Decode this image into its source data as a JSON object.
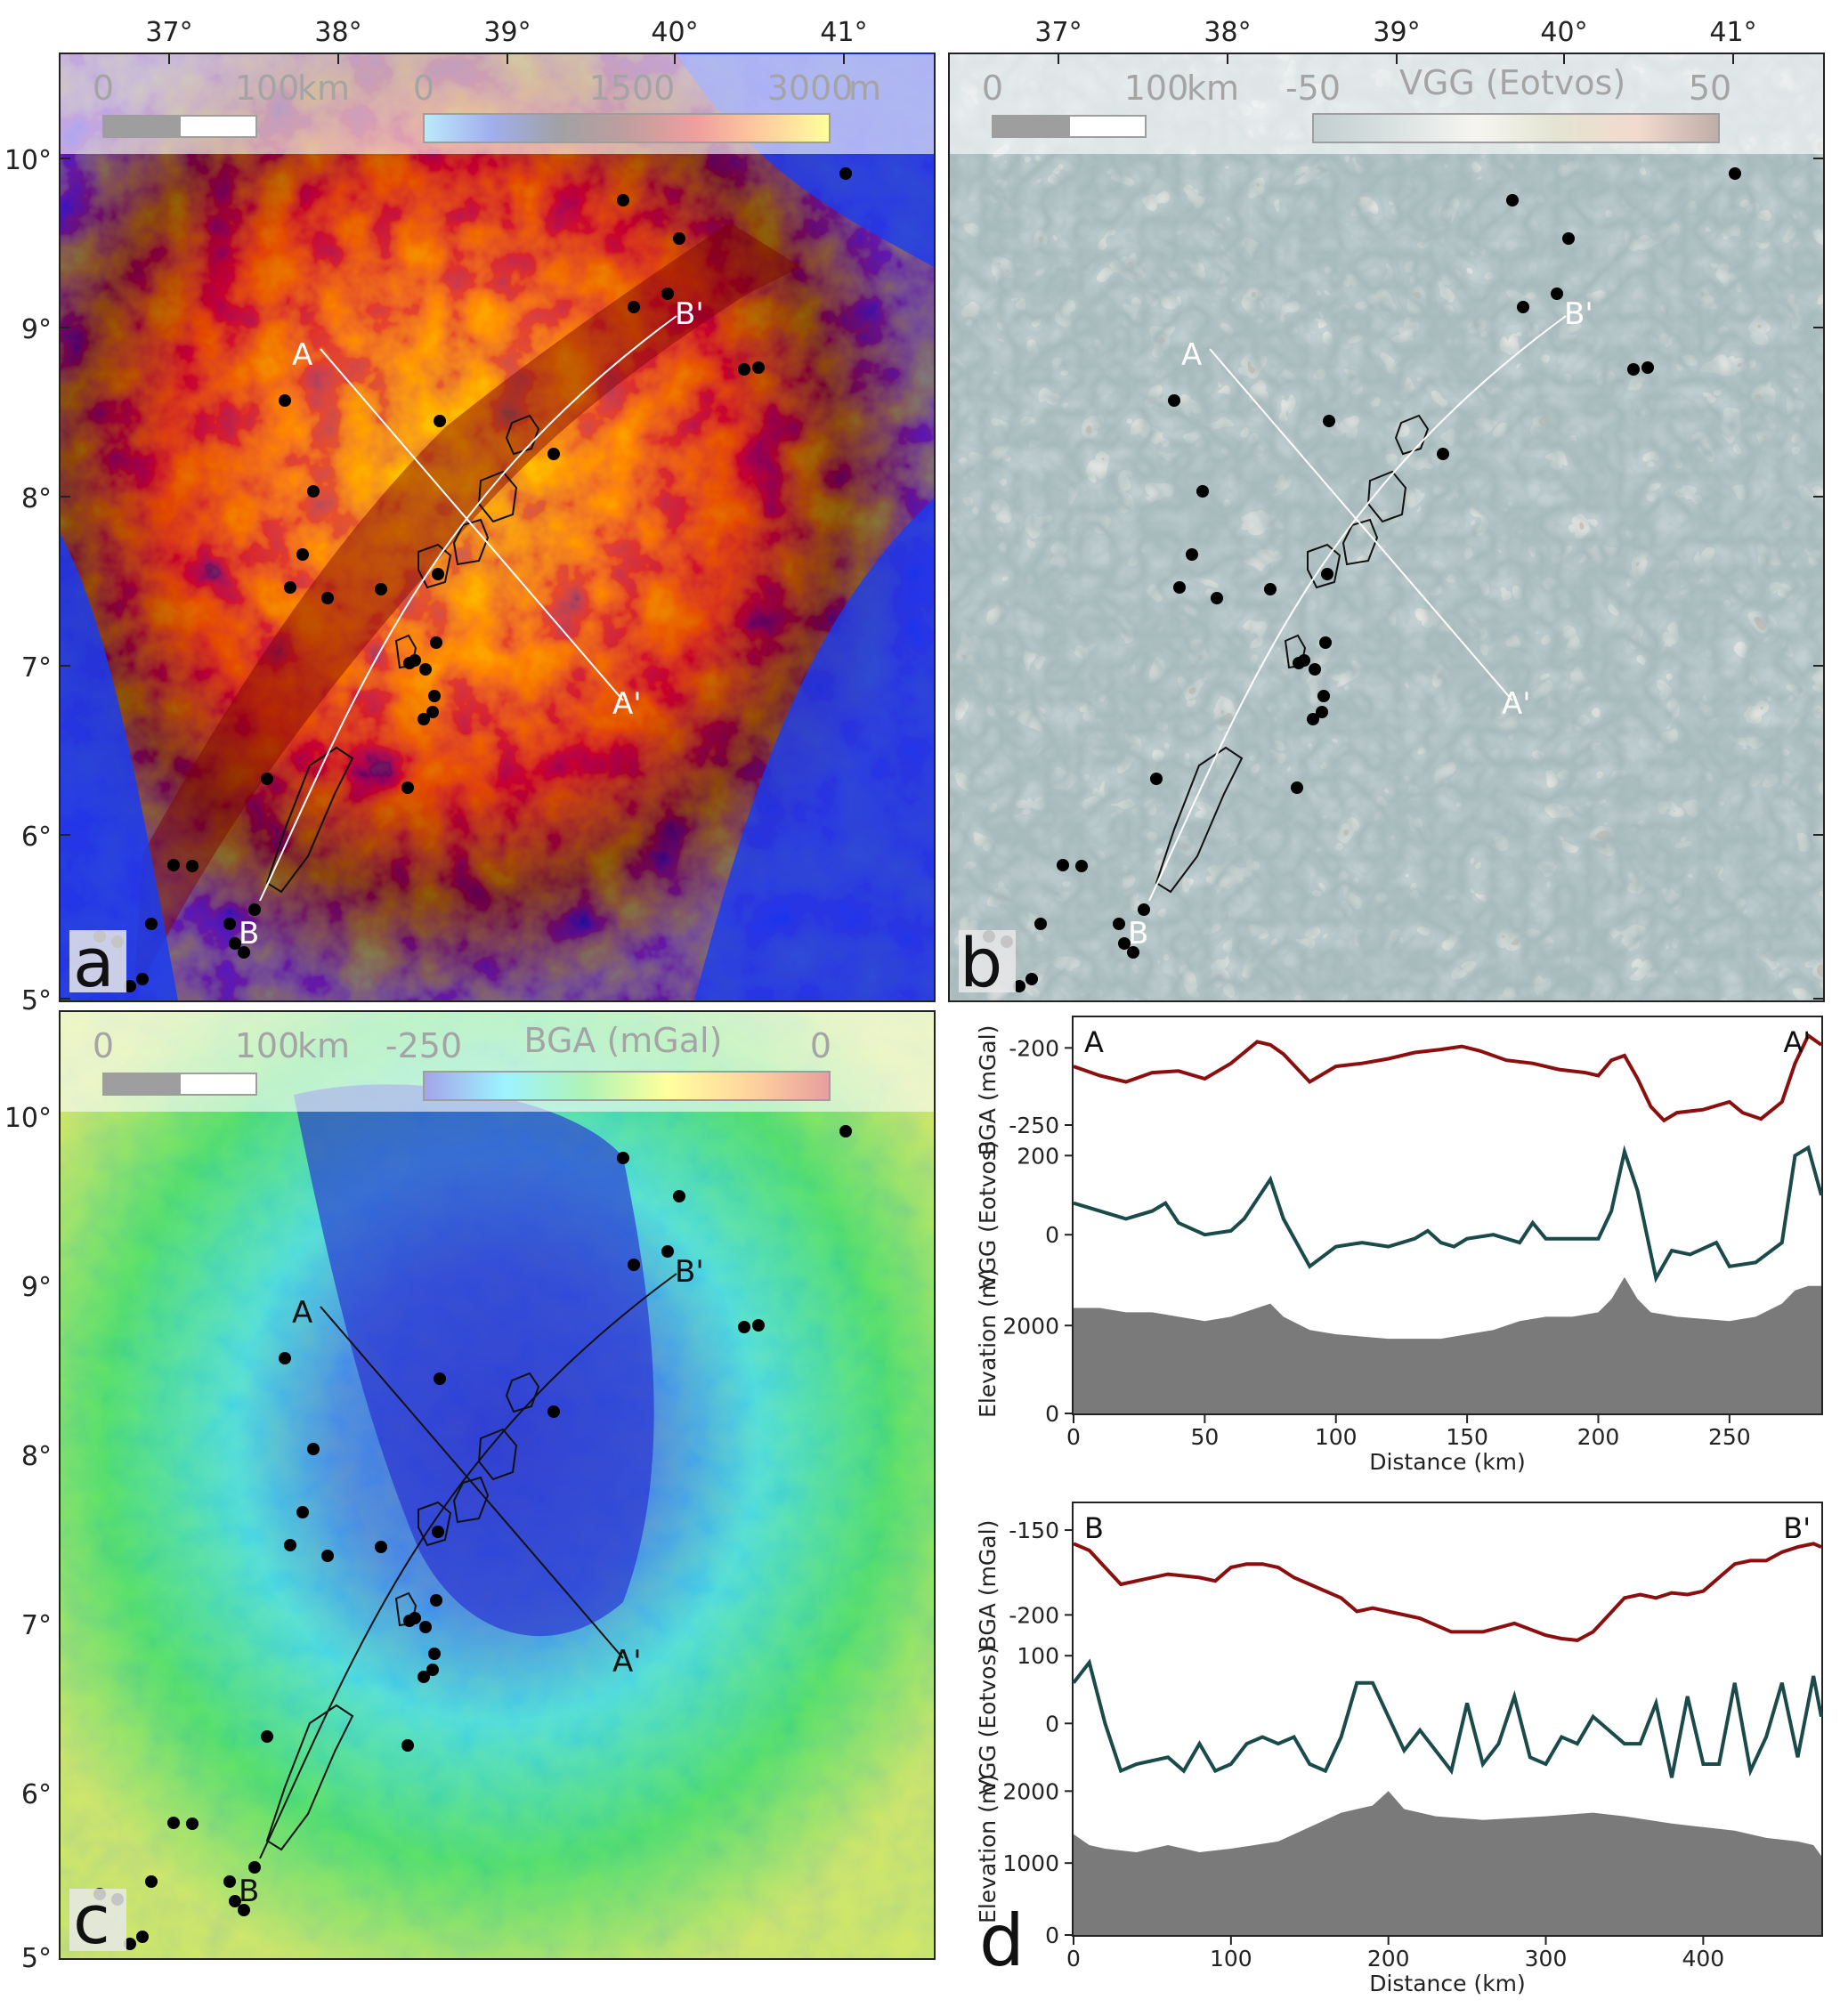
{
  "figure": {
    "lon_ticks": [
      "37°",
      "38°",
      "39°",
      "40°",
      "41°"
    ],
    "lat_ticks": [
      "10°",
      "9°",
      "8°",
      "7°",
      "6°",
      "5°"
    ]
  },
  "panels": {
    "a": {
      "label": "a",
      "scalebar": {
        "start": "0",
        "end": "100",
        "unit": "km"
      },
      "colorbar": {
        "min": "0",
        "mid": "1500",
        "max": "3000",
        "unit": "m",
        "colormap": [
          "#4fc8f5",
          "#0a2bd0",
          "#0a0a14",
          "#5a0000",
          "#d40000",
          "#ff7a00",
          "#ffff00"
        ]
      },
      "profile_labels": [
        "A",
        "A'",
        "B",
        "B'"
      ],
      "colors": {
        "low": "#1232e8",
        "high": "#ffdd00"
      }
    },
    "b": {
      "label": "b",
      "scalebar": {
        "start": "0",
        "end": "100",
        "unit": "km"
      },
      "colorbar": {
        "min": "-50",
        "title": "VGG (Eotvos)",
        "max": "50",
        "colormap": [
          "#5f7f84",
          "#9eb3b1",
          "#e9e4da",
          "#b7b88a",
          "#de9e7f",
          "#55291a"
        ]
      },
      "profile_labels": [
        "A",
        "A'",
        "B",
        "B'"
      ],
      "colors": {
        "negative": "#8fa7ad",
        "positive": "#7a4632"
      }
    },
    "c": {
      "label": "c",
      "scalebar": {
        "start": "0",
        "end": "100",
        "unit": "km"
      },
      "colorbar": {
        "min": "-250",
        "title": "BGA (mGal)",
        "max": "0",
        "colormap": [
          "#1010c8",
          "#00e0ff",
          "#30e040",
          "#ffff00",
          "#ff9000",
          "#c00000"
        ]
      },
      "profile_labels": [
        "A",
        "A'",
        "B",
        "B'"
      ]
    },
    "d": {
      "label": "d",
      "profile_AA": {
        "start_label": "A",
        "end_label": "A'",
        "xlabel": "Distance (km)",
        "ylabels": {
          "bga": "BGA (mGal)",
          "vgg": "VGG (Eotvos)",
          "elev": "Elevation (m)"
        },
        "bga_ticks": [
          "-200",
          "-250"
        ],
        "vgg_ticks": [
          "200",
          "0"
        ],
        "elev_ticks": [
          "2000",
          "0"
        ],
        "x_ticks": [
          "0",
          "50",
          "100",
          "150",
          "200",
          "250"
        ]
      },
      "profile_BB": {
        "start_label": "B",
        "end_label": "B'",
        "xlabel": "Distance (km)",
        "ylabels": {
          "bga": "BGA (mGal)",
          "vgg": "VGG (Eotvos)",
          "elev": "Elevation (m)"
        },
        "bga_ticks": [
          "-150",
          "-200"
        ],
        "vgg_ticks": [
          "100",
          "0"
        ],
        "elev_ticks": [
          "2000",
          "1000",
          "0"
        ],
        "x_ticks": [
          "0",
          "100",
          "200",
          "300",
          "400"
        ]
      }
    }
  },
  "chart_data": [
    {
      "type": "line",
      "title": "",
      "xlabel": "Distance (km)",
      "xlim": [
        0,
        285
      ],
      "series": [
        {
          "name": "BGA (mGal)",
          "color": "#8b0f0f",
          "x": [
            0,
            10,
            20,
            30,
            40,
            50,
            60,
            70,
            75,
            80,
            90,
            100,
            110,
            120,
            130,
            140,
            148,
            155,
            165,
            175,
            185,
            195,
            200,
            205,
            210,
            215,
            220,
            225,
            230,
            240,
            250,
            255,
            262,
            270,
            275,
            280,
            285
          ],
          "y": [
            -212,
            -218,
            -222,
            -216,
            -215,
            -220,
            -210,
            -196,
            -198,
            -204,
            -222,
            -212,
            -210,
            -207,
            -203,
            -201,
            -199,
            -202,
            -208,
            -210,
            -214,
            -216,
            -218,
            -208,
            -205,
            -220,
            -238,
            -247,
            -242,
            -240,
            -235,
            -242,
            -246,
            -235,
            -210,
            -192,
            -198
          ]
        },
        {
          "name": "VGG (Eotvos)",
          "color": "#1a4a4a",
          "x": [
            0,
            10,
            20,
            30,
            35,
            40,
            50,
            60,
            65,
            75,
            80,
            90,
            100,
            110,
            120,
            130,
            135,
            140,
            145,
            150,
            160,
            170,
            175,
            180,
            190,
            200,
            205,
            210,
            215,
            222,
            228,
            235,
            245,
            250,
            260,
            270,
            275,
            280,
            285
          ],
          "y": [
            80,
            60,
            40,
            60,
            80,
            30,
            0,
            10,
            40,
            140,
            40,
            -80,
            -30,
            -20,
            -30,
            -10,
            10,
            -20,
            -30,
            -10,
            0,
            -20,
            30,
            -10,
            -10,
            -10,
            60,
            210,
            110,
            -110,
            -40,
            -50,
            -20,
            -80,
            -70,
            -20,
            200,
            220,
            100
          ]
        },
        {
          "name": "Elevation (m)",
          "color": "#7a7a7a",
          "x": [
            0,
            10,
            20,
            30,
            40,
            50,
            60,
            70,
            75,
            80,
            90,
            100,
            120,
            140,
            150,
            160,
            170,
            180,
            190,
            200,
            205,
            210,
            215,
            220,
            230,
            250,
            260,
            270,
            275,
            280,
            285
          ],
          "y": [
            2400,
            2400,
            2300,
            2300,
            2200,
            2100,
            2200,
            2400,
            2500,
            2200,
            1900,
            1800,
            1700,
            1700,
            1800,
            1900,
            2100,
            2200,
            2200,
            2300,
            2600,
            3100,
            2600,
            2300,
            2200,
            2100,
            2200,
            2500,
            2800,
            2900,
            2900
          ]
        }
      ]
    },
    {
      "type": "line",
      "title": "",
      "xlabel": "Distance (km)",
      "xlim": [
        0,
        475
      ],
      "series": [
        {
          "name": "BGA (mGal)",
          "color": "#8b0f0f",
          "x": [
            0,
            10,
            20,
            30,
            40,
            60,
            80,
            90,
            100,
            110,
            120,
            130,
            140,
            150,
            170,
            180,
            190,
            200,
            220,
            240,
            260,
            280,
            300,
            310,
            320,
            330,
            340,
            350,
            360,
            370,
            380,
            390,
            400,
            410,
            420,
            430,
            440,
            450,
            460,
            470,
            475
          ],
          "y": [
            -158,
            -162,
            -172,
            -182,
            -180,
            -176,
            -178,
            -180,
            -172,
            -170,
            -170,
            -172,
            -178,
            -182,
            -190,
            -198,
            -196,
            -198,
            -202,
            -210,
            -210,
            -205,
            -212,
            -214,
            -215,
            -210,
            -200,
            -190,
            -188,
            -190,
            -187,
            -188,
            -186,
            -178,
            -170,
            -168,
            -168,
            -163,
            -160,
            -158,
            -160
          ]
        },
        {
          "name": "VGG (Eotvos)",
          "color": "#1a4a4a",
          "x": [
            0,
            10,
            20,
            30,
            40,
            60,
            70,
            80,
            90,
            100,
            110,
            120,
            130,
            140,
            150,
            160,
            170,
            180,
            190,
            200,
            210,
            220,
            240,
            250,
            260,
            270,
            280,
            290,
            300,
            310,
            320,
            330,
            340,
            350,
            360,
            370,
            380,
            390,
            400,
            410,
            420,
            430,
            440,
            450,
            460,
            470,
            475
          ],
          "y": [
            60,
            90,
            0,
            -70,
            -60,
            -50,
            -70,
            -30,
            -70,
            -60,
            -30,
            -20,
            -30,
            -20,
            -60,
            -70,
            -20,
            60,
            60,
            10,
            -40,
            -10,
            -70,
            30,
            -60,
            -30,
            40,
            -50,
            -60,
            -20,
            -30,
            10,
            -10,
            -30,
            -30,
            30,
            -80,
            40,
            -60,
            -60,
            60,
            -70,
            -20,
            60,
            -50,
            70,
            10
          ]
        },
        {
          "name": "Elevation (m)",
          "color": "#7a7a7a",
          "x": [
            0,
            10,
            20,
            40,
            60,
            80,
            100,
            130,
            150,
            170,
            190,
            200,
            210,
            230,
            260,
            300,
            330,
            350,
            380,
            400,
            420,
            440,
            460,
            470,
            475
          ],
          "y": [
            1400,
            1250,
            1200,
            1150,
            1250,
            1150,
            1200,
            1300,
            1500,
            1700,
            1800,
            2000,
            1750,
            1650,
            1600,
            1650,
            1700,
            1650,
            1550,
            1500,
            1450,
            1350,
            1300,
            1250,
            1100
          ]
        }
      ]
    }
  ]
}
